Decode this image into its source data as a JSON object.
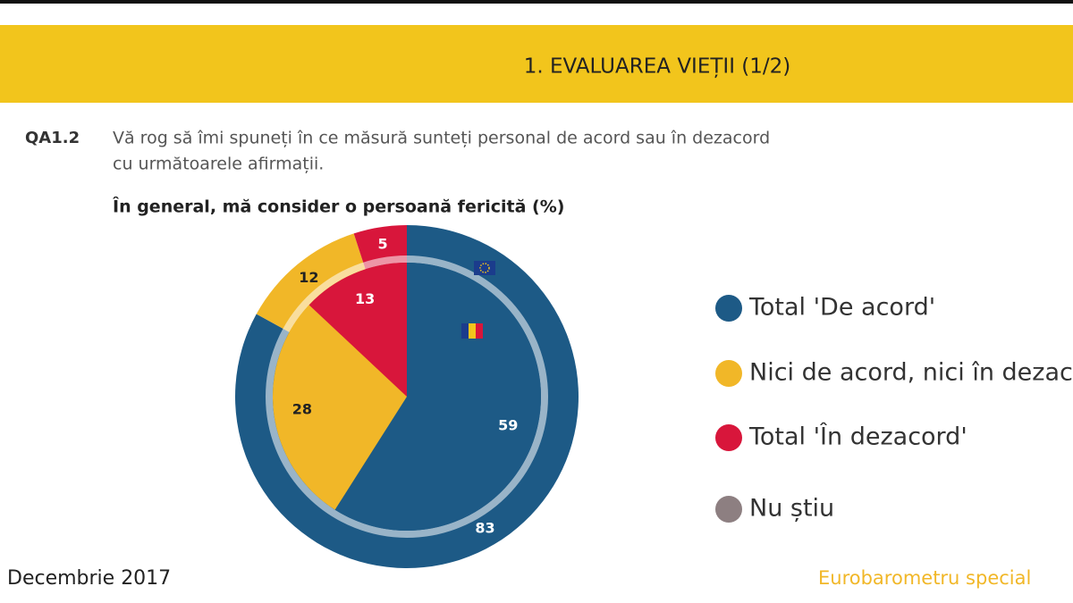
{
  "header": {
    "title": "1. EVALUAREA VIEȚII (1/2)"
  },
  "question": {
    "code": "QA1.2",
    "lines": [
      "Vă rog să îmi spuneți în ce măsură sunteți personal de acord sau în dezacord",
      "cu următoarele afirmații."
    ]
  },
  "chart_data": {
    "type": "pie",
    "title": "În general, mă consider o persoană fericită  (%)",
    "categories": [
      "Total 'De acord'",
      "Nici de acord, nici în dezacord",
      "Total 'În dezacord'",
      "Nu știu"
    ],
    "colors": [
      "#1d5a86",
      "#f1b728",
      "#d8163b",
      "#8d7f81"
    ],
    "series": [
      {
        "values": [
          83,
          12,
          5,
          0
        ]
      },
      {
        "values": [
          59,
          28,
          13,
          0
        ]
      }
    ]
  },
  "footer": {
    "date": "Decembrie 2017",
    "source": "Eurobarometru special"
  }
}
